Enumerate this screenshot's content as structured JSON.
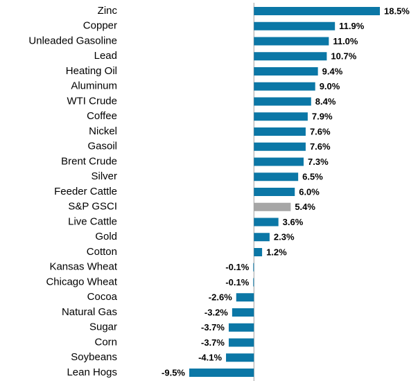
{
  "chart_data": {
    "type": "hbar",
    "categories": [
      "Zinc",
      "Copper",
      "Unleaded Gasoline",
      "Lead",
      "Heating Oil",
      "Aluminum",
      "WTI Crude",
      "Coffee",
      "Nickel",
      "Gasoil",
      "Brent Crude",
      "Silver",
      "Feeder Cattle",
      "S&P GSCI",
      "Live Cattle",
      "Gold",
      "Cotton",
      "Kansas Wheat",
      "Chicago Wheat",
      "Cocoa",
      "Natural Gas",
      "Sugar",
      "Corn",
      "Soybeans",
      "Lean Hogs"
    ],
    "values": [
      18.5,
      11.9,
      11.0,
      10.7,
      9.4,
      9.0,
      8.4,
      7.9,
      7.6,
      7.6,
      7.3,
      6.5,
      6.0,
      5.4,
      3.6,
      2.3,
      1.2,
      -0.1,
      -0.1,
      -2.6,
      -3.2,
      -3.7,
      -3.7,
      -4.1,
      -9.5
    ],
    "value_labels": [
      "18.5%",
      "11.9%",
      "11.0%",
      "10.7%",
      "9.4%",
      "9.0%",
      "8.4%",
      "7.9%",
      "7.6%",
      "7.6%",
      "7.3%",
      "6.5%",
      "6.0%",
      "5.4%",
      "3.6%",
      "2.3%",
      "1.2%",
      "-0.1%",
      "-0.1%",
      "-2.6%",
      "-3.2%",
      "-3.7%",
      "-3.7%",
      "-4.1%",
      "-9.5%"
    ],
    "colors": [
      "#0b77a6",
      "#0b77a6",
      "#0b77a6",
      "#0b77a6",
      "#0b77a6",
      "#0b77a6",
      "#0b77a6",
      "#0b77a6",
      "#0b77a6",
      "#0b77a6",
      "#0b77a6",
      "#0b77a6",
      "#0b77a6",
      "#a6a6a6",
      "#0b77a6",
      "#0b77a6",
      "#0b77a6",
      "#0b77a6",
      "#0b77a6",
      "#0b77a6",
      "#0b77a6",
      "#0b77a6",
      "#0b77a6",
      "#0b77a6",
      "#0b77a6"
    ]
  }
}
